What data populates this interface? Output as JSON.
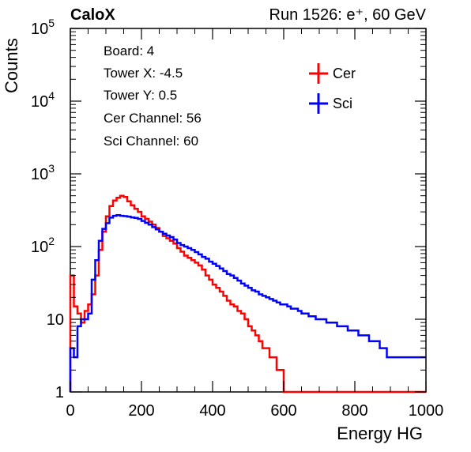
{
  "header": {
    "left": "CaloX",
    "right": "Run 1526: e⁺, 60 GeV"
  },
  "info_lines": [
    "Board: 4",
    "Tower X: -4.5",
    "Tower Y: 0.5",
    "Cer Channel: 56",
    "Sci Channel: 60"
  ],
  "chart_data": {
    "type": "line",
    "title": "",
    "xlabel": "Energy HG",
    "ylabel": "Counts",
    "xlim": [
      0,
      1000
    ],
    "ylim": [
      1,
      100000
    ],
    "yscale": "log",
    "grid": false,
    "legend_position": "top-right",
    "x_ticks": [
      {
        "value": 0,
        "label": "0"
      },
      {
        "value": 200,
        "label": "200"
      },
      {
        "value": 400,
        "label": "400"
      },
      {
        "value": 600,
        "label": "600"
      },
      {
        "value": 800,
        "label": "800"
      },
      {
        "value": 1000,
        "label": "1000"
      }
    ],
    "y_ticks": [
      {
        "value": 1,
        "label": "1"
      },
      {
        "value": 10,
        "label": "10"
      },
      {
        "value": 100,
        "label": "10",
        "exp": "2"
      },
      {
        "value": 1000,
        "label": "10",
        "exp": "3"
      },
      {
        "value": 10000,
        "label": "10",
        "exp": "4"
      },
      {
        "value": 100000,
        "label": "10",
        "exp": "5"
      }
    ],
    "series": [
      {
        "name": "Cer",
        "color": "#ff0000",
        "style": "step",
        "x": [
          0,
          10,
          20,
          30,
          40,
          50,
          60,
          70,
          80,
          90,
          100,
          110,
          120,
          130,
          140,
          150,
          160,
          170,
          180,
          190,
          200,
          210,
          220,
          230,
          240,
          250,
          260,
          270,
          280,
          290,
          300,
          310,
          320,
          330,
          340,
          350,
          360,
          370,
          380,
          390,
          400,
          410,
          420,
          430,
          440,
          450,
          460,
          470,
          480,
          490,
          500,
          510,
          520,
          530,
          540,
          550,
          560,
          570,
          580,
          590,
          600,
          610,
          620,
          630,
          640,
          650,
          660,
          670,
          680,
          690,
          700,
          710,
          720,
          730,
          740,
          750,
          760,
          770,
          780,
          790,
          800,
          810,
          820,
          830,
          840,
          850,
          860,
          870,
          880,
          890,
          900,
          910,
          920,
          930,
          940,
          950,
          960,
          970,
          980,
          990
        ],
        "values": [
          40,
          15,
          12,
          9,
          13,
          16,
          22,
          40,
          90,
          160,
          260,
          360,
          430,
          470,
          500,
          480,
          420,
          370,
          330,
          300,
          260,
          240,
          220,
          200,
          180,
          160,
          140,
          130,
          120,
          110,
          95,
          85,
          75,
          70,
          65,
          60,
          55,
          48,
          40,
          35,
          30,
          27,
          24,
          21,
          18,
          16,
          15,
          13,
          12,
          10,
          8,
          7,
          6,
          5,
          4,
          4,
          3,
          3,
          2,
          2,
          1,
          1,
          1,
          1,
          1,
          1,
          1,
          1,
          1,
          1,
          1,
          1,
          1,
          1,
          1,
          1,
          1,
          1,
          1,
          1,
          1,
          1,
          1,
          1,
          1,
          1,
          1,
          1,
          1,
          1,
          1,
          1,
          1,
          1,
          1,
          1,
          1,
          1,
          1,
          1
        ]
      },
      {
        "name": "Sci",
        "color": "#0000ff",
        "style": "step",
        "x": [
          0,
          10,
          20,
          30,
          40,
          50,
          60,
          70,
          80,
          90,
          100,
          110,
          120,
          130,
          140,
          150,
          160,
          170,
          180,
          190,
          200,
          210,
          220,
          230,
          240,
          250,
          260,
          270,
          280,
          290,
          300,
          310,
          320,
          330,
          340,
          350,
          360,
          370,
          380,
          390,
          400,
          410,
          420,
          430,
          440,
          450,
          460,
          470,
          480,
          490,
          500,
          510,
          520,
          530,
          540,
          550,
          560,
          570,
          580,
          590,
          600,
          610,
          620,
          630,
          640,
          650,
          660,
          670,
          680,
          690,
          700,
          710,
          720,
          730,
          740,
          750,
          760,
          770,
          780,
          790,
          800,
          810,
          820,
          830,
          840,
          850,
          860,
          870,
          880,
          890,
          900,
          910,
          920,
          930,
          940,
          950,
          960,
          970,
          980,
          990
        ],
        "values": [
          4,
          3,
          8,
          10,
          10,
          12,
          35,
          65,
          120,
          175,
          210,
          250,
          265,
          270,
          265,
          262,
          258,
          252,
          248,
          240,
          225,
          212,
          200,
          185,
          172,
          160,
          150,
          142,
          135,
          125,
          112,
          105,
          100,
          95,
          90,
          84,
          78,
          72,
          68,
          62,
          58,
          54,
          50,
          46,
          42,
          40,
          37,
          34,
          31,
          29,
          27,
          25,
          24,
          22,
          21,
          20,
          19,
          18,
          17,
          16,
          16,
          15,
          14,
          14,
          13,
          12,
          12,
          11,
          11,
          10,
          10,
          10,
          9,
          9,
          9,
          8,
          8,
          8,
          7,
          7,
          7,
          6,
          6,
          6,
          5,
          5,
          5,
          4,
          4,
          3,
          3,
          3,
          3,
          3,
          3,
          3,
          3,
          3,
          3,
          3
        ]
      }
    ]
  }
}
